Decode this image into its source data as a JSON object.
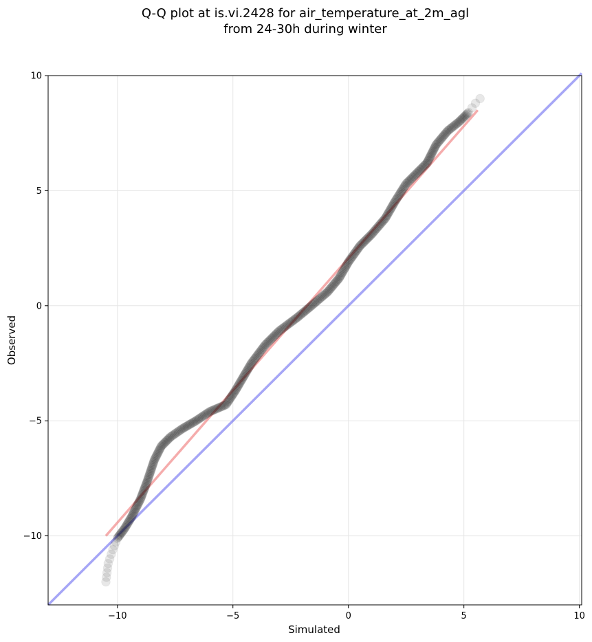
{
  "chart_data": {
    "type": "scatter",
    "title_line1": "Q-Q plot at is.vi.2428 for air_temperature_at_2m_agl",
    "title_line2": "from 24-30h during winter",
    "xlabel": "Simulated",
    "ylabel": "Observed",
    "xlim": [
      -13,
      10.1
    ],
    "ylim": [
      -13,
      10
    ],
    "xticks": [
      -10,
      -5,
      0,
      5,
      10
    ],
    "yticks": [
      -10,
      -5,
      0,
      5,
      10
    ],
    "xtick_labels": [
      "−10",
      "−5",
      "0",
      "5",
      "10"
    ],
    "ytick_labels": [
      "−10",
      "−5",
      "0",
      "5",
      "10"
    ],
    "grid": true,
    "legend": "none",
    "colors": {
      "points": "#000000",
      "fit_line": "#f08080",
      "identity_line": "#6b6bf0",
      "grid": "#e6e6e6"
    },
    "reference_lines": [
      {
        "kind": "identity",
        "x": [
          -13,
          10.1
        ],
        "y": [
          -13,
          10.1
        ]
      },
      {
        "kind": "fit",
        "x": [
          -10.5,
          5.6
        ],
        "y": [
          -10.0,
          8.5
        ]
      }
    ],
    "curve_knots": [
      {
        "x": -10.5,
        "y": -12.0
      },
      {
        "x": -10.4,
        "y": -11.2
      },
      {
        "x": -10.2,
        "y": -10.6
      },
      {
        "x": -10.0,
        "y": -10.1
      },
      {
        "x": -9.7,
        "y": -9.7
      },
      {
        "x": -9.4,
        "y": -9.2
      },
      {
        "x": -9.0,
        "y": -8.4
      },
      {
        "x": -8.7,
        "y": -7.6
      },
      {
        "x": -8.4,
        "y": -6.7
      },
      {
        "x": -8.1,
        "y": -6.1
      },
      {
        "x": -7.7,
        "y": -5.7
      },
      {
        "x": -7.2,
        "y": -5.35
      },
      {
        "x": -6.6,
        "y": -5.0
      },
      {
        "x": -6.0,
        "y": -4.6
      },
      {
        "x": -5.3,
        "y": -4.3
      },
      {
        "x": -4.9,
        "y": -3.7
      },
      {
        "x": -4.2,
        "y": -2.5
      },
      {
        "x": -3.6,
        "y": -1.7
      },
      {
        "x": -3.0,
        "y": -1.1
      },
      {
        "x": -2.2,
        "y": -0.5
      },
      {
        "x": -1.6,
        "y": 0.0
      },
      {
        "x": -0.9,
        "y": 0.6
      },
      {
        "x": -0.4,
        "y": 1.2
      },
      {
        "x": 0.0,
        "y": 1.9
      },
      {
        "x": 0.5,
        "y": 2.6
      },
      {
        "x": 1.0,
        "y": 3.1
      },
      {
        "x": 1.6,
        "y": 3.8
      },
      {
        "x": 2.0,
        "y": 4.5
      },
      {
        "x": 2.5,
        "y": 5.3
      },
      {
        "x": 3.0,
        "y": 5.8
      },
      {
        "x": 3.4,
        "y": 6.2
      },
      {
        "x": 3.8,
        "y": 7.0
      },
      {
        "x": 4.3,
        "y": 7.6
      },
      {
        "x": 4.8,
        "y": 8.0
      },
      {
        "x": 5.2,
        "y": 8.4
      },
      {
        "x": 5.5,
        "y": 8.8
      },
      {
        "x": 5.7,
        "y": 9.0
      }
    ]
  }
}
